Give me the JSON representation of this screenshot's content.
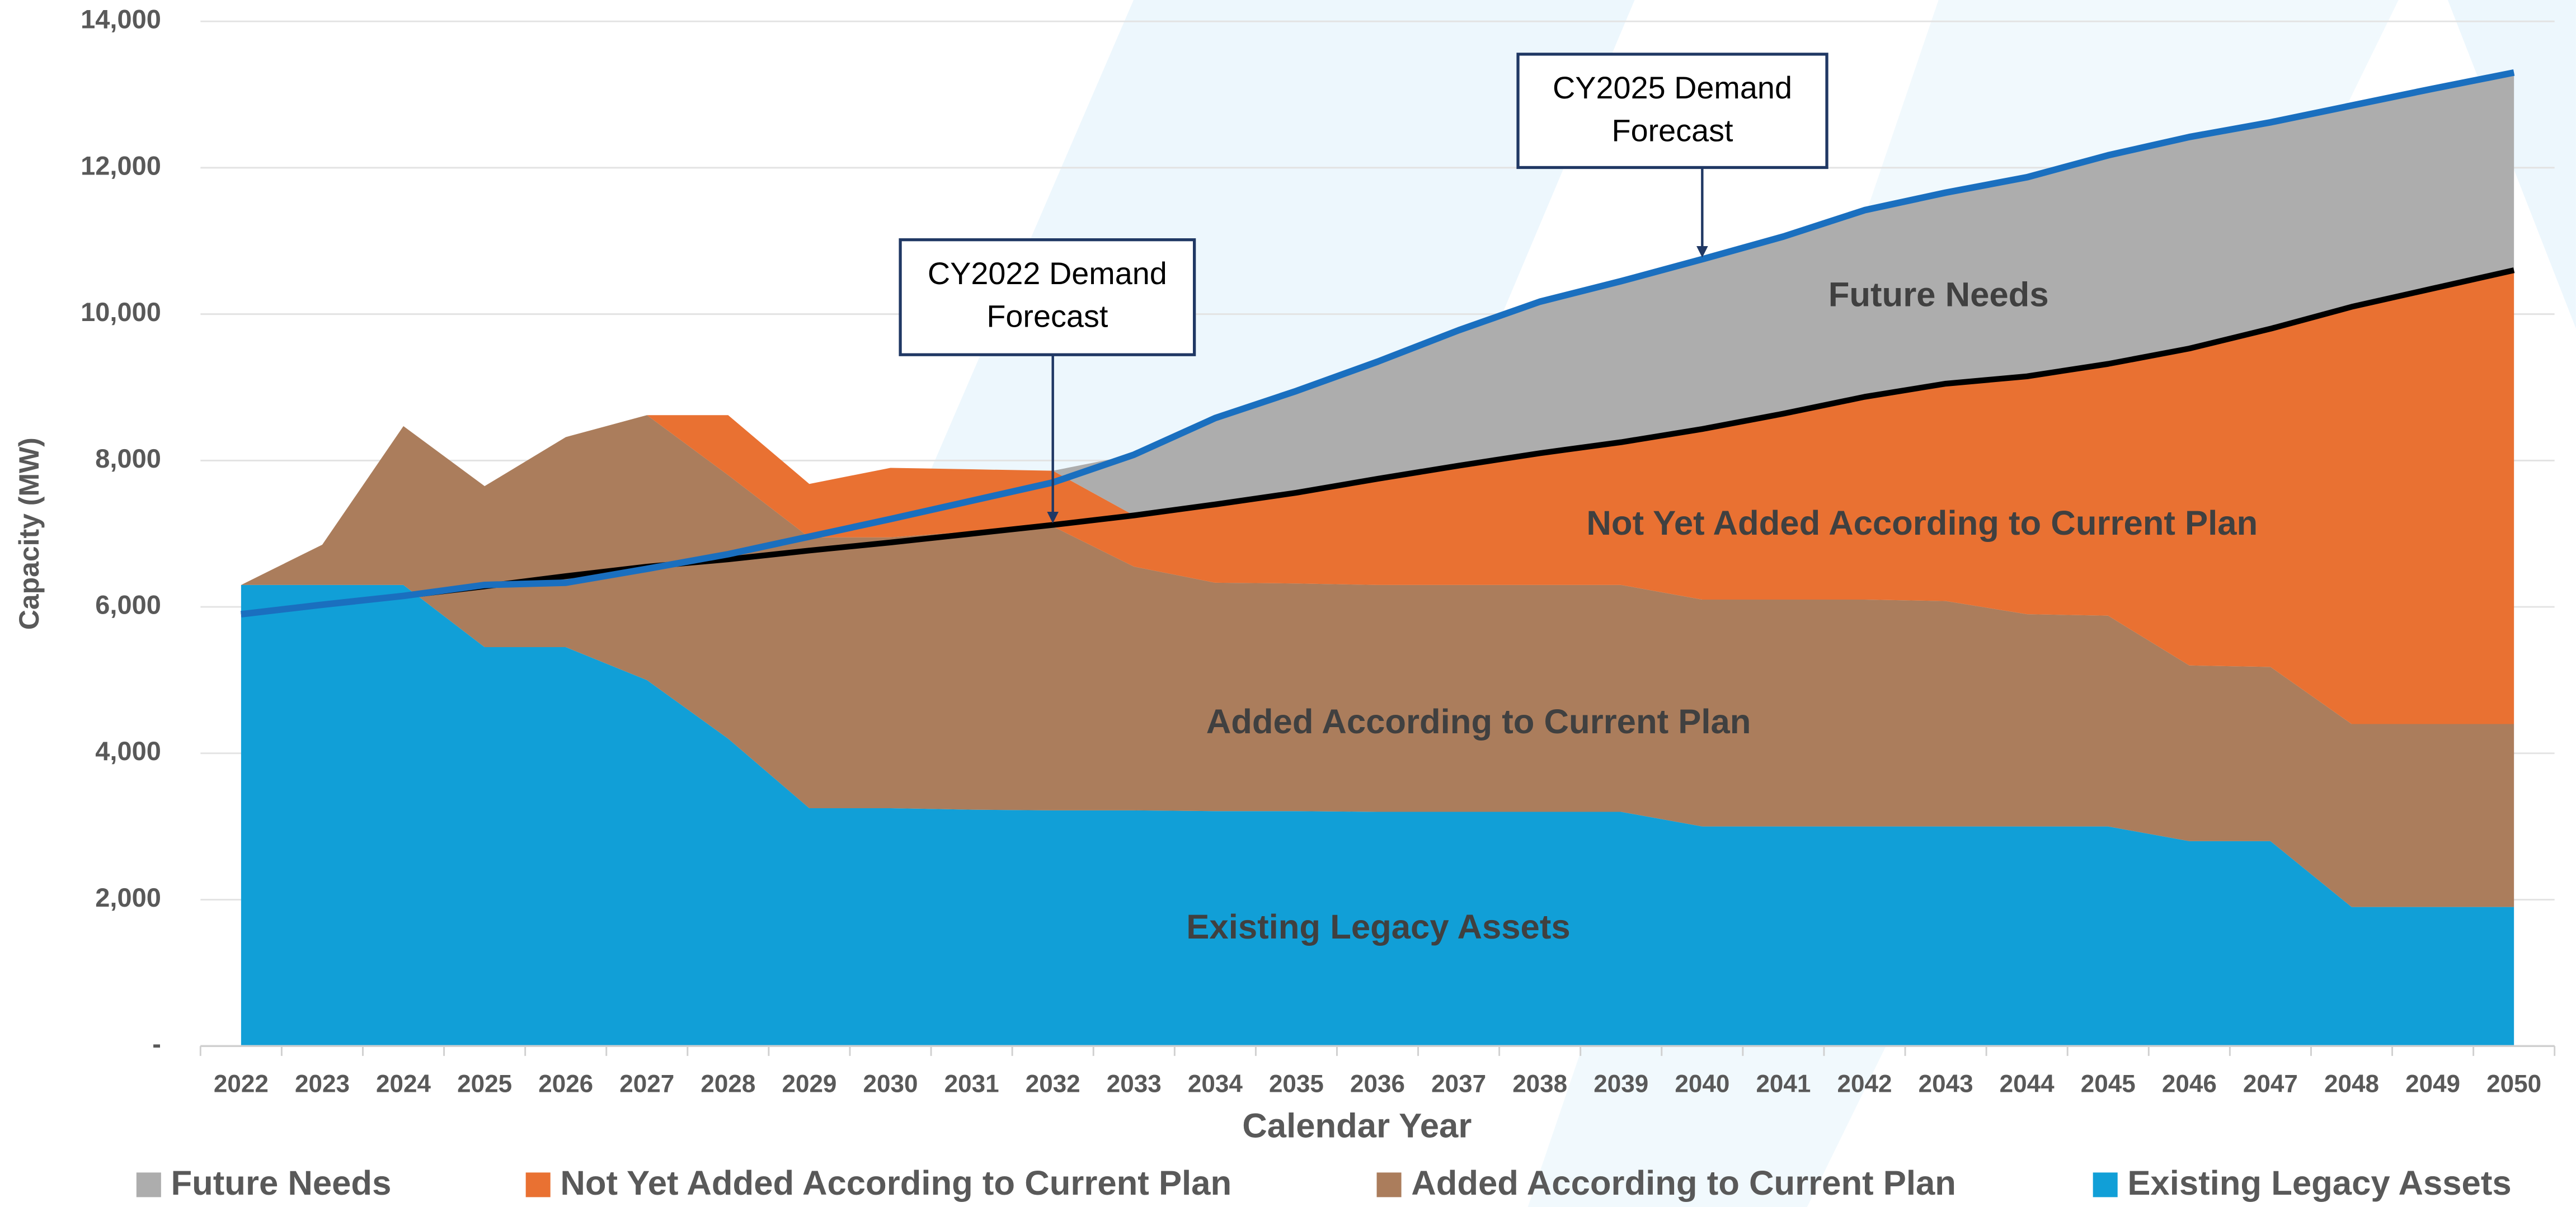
{
  "chart_data": {
    "type": "stacked_area",
    "categories": [
      "2022",
      "2023",
      "2024",
      "2025",
      "2026",
      "2027",
      "2028",
      "2029",
      "2030",
      "2031",
      "2032",
      "2033",
      "2034",
      "2035",
      "2036",
      "2037",
      "2038",
      "2039",
      "2040",
      "2041",
      "2042",
      "2043",
      "2044",
      "2045",
      "2046",
      "2047",
      "2048",
      "2049",
      "2050"
    ],
    "series": [
      {
        "name": "Existing Legacy Assets",
        "color": "#119fd7",
        "values": [
          6300,
          6300,
          6300,
          5450,
          5450,
          5000,
          4200,
          3250,
          3250,
          3230,
          3220,
          3220,
          3210,
          3210,
          3200,
          3200,
          3200,
          3200,
          3000,
          3000,
          3000,
          3000,
          3000,
          3000,
          2800,
          2800,
          1900,
          1900,
          1900
        ]
      },
      {
        "name": "Added According to Current Plan",
        "color": "#ab7d5c",
        "values": [
          0,
          550,
          2170,
          2200,
          2870,
          3620,
          3600,
          3700,
          3700,
          3800,
          3880,
          3330,
          3120,
          3110,
          3100,
          3100,
          3100,
          3100,
          3100,
          3100,
          3100,
          3080,
          2900,
          2880,
          2400,
          2380,
          2500,
          2500,
          2500
        ]
      },
      {
        "name": "Not Yet Added According to Current Plan",
        "color": "#e97132",
        "values": [
          0,
          0,
          0,
          0,
          0,
          0,
          820,
          730,
          950,
          850,
          760,
          700,
          1070,
          1240,
          1450,
          1630,
          1800,
          1950,
          2330,
          2540,
          2770,
          2970,
          3250,
          3440,
          4330,
          4620,
          5700,
          5950,
          6200
        ]
      },
      {
        "name": "Future Needs",
        "color": "#adadad",
        "values": [
          0,
          0,
          0,
          0,
          0,
          0,
          0,
          0,
          0,
          0,
          0,
          830,
          1180,
          1390,
          1600,
          1850,
          2070,
          2200,
          2320,
          2420,
          2550,
          2610,
          2720,
          2850,
          2890,
          2820,
          2750,
          2730,
          2700
        ]
      }
    ],
    "lines": [
      {
        "name": "CY2022 Demand Forecast",
        "color": "#000000",
        "values": [
          5900,
          6030,
          6150,
          6280,
          6420,
          6550,
          6650,
          6770,
          6880,
          7000,
          7120,
          7250,
          7400,
          7560,
          7750,
          7930,
          8100,
          8250,
          8430,
          8640,
          8870,
          9050,
          9150,
          9320,
          9530,
          9800,
          10100,
          10350,
          10600
        ]
      },
      {
        "name": "CY2025 Demand Forecast",
        "color": "#1a6fbf",
        "values": [
          5900,
          6030,
          6150,
          6300,
          6330,
          6520,
          6720,
          6960,
          7200,
          7450,
          7700,
          8080,
          8580,
          8950,
          9350,
          9780,
          10170,
          10450,
          10750,
          11060,
          11420,
          11660,
          11870,
          12170,
          12420,
          12620,
          12850,
          13080,
          13300
        ]
      }
    ],
    "xlabel": "Calendar Year",
    "ylabel": "Capacity (MW)",
    "ylim": [
      0,
      14000
    ],
    "yticks": [
      {
        "value": 0,
        "label": "-"
      },
      {
        "value": 2000,
        "label": "2,000"
      },
      {
        "value": 4000,
        "label": "4,000"
      },
      {
        "value": 6000,
        "label": "6,000"
      },
      {
        "value": 8000,
        "label": "8,000"
      },
      {
        "value": 10000,
        "label": "10,000"
      },
      {
        "value": 12000,
        "label": "12,000"
      },
      {
        "value": 14000,
        "label": "14,000"
      }
    ],
    "grid": true,
    "legend": "bottom"
  }
}
